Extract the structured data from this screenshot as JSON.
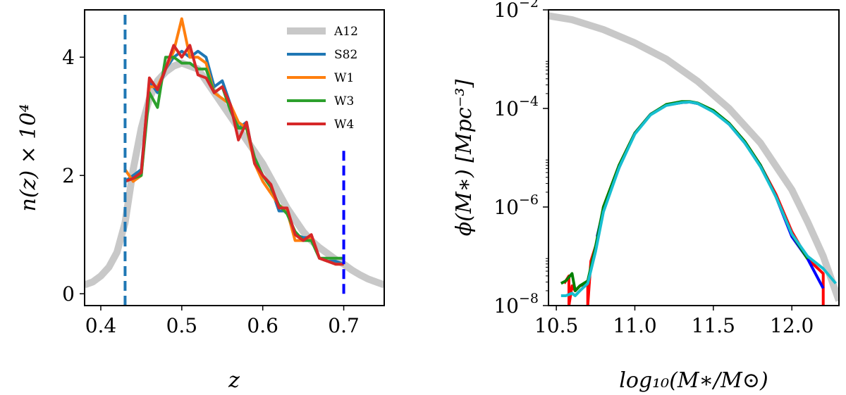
{
  "chart_data": [
    {
      "type": "line",
      "xlabel": "z",
      "ylabel": "n(z) × 10⁴",
      "xlim": [
        0.38,
        0.75
      ],
      "ylim": [
        -0.2,
        4.8
      ],
      "xticks": [
        0.4,
        0.5,
        0.6,
        0.7
      ],
      "xtick_labels": [
        "0.4",
        "0.5",
        "0.6",
        "0.7"
      ],
      "yticks": [
        0,
        2,
        4
      ],
      "ytick_labels": [
        "0",
        "2",
        "4"
      ],
      "legend_position": "top-right",
      "vlines": [
        {
          "x": 0.43,
          "ymin": -0.2,
          "ymax": 4.8,
          "color": "#1f77b4",
          "dashed": true
        },
        {
          "x": 0.7,
          "ymin": 0.0,
          "ymax": 2.5,
          "color": "#0000ff",
          "dashed": true
        }
      ],
      "series": [
        {
          "name": "A12",
          "color": "#c8c8c8",
          "width": 10,
          "x": [
            0.38,
            0.39,
            0.4,
            0.41,
            0.42,
            0.43,
            0.44,
            0.45,
            0.46,
            0.47,
            0.48,
            0.49,
            0.5,
            0.51,
            0.52,
            0.53,
            0.54,
            0.55,
            0.56,
            0.57,
            0.58,
            0.59,
            0.6,
            0.61,
            0.62,
            0.63,
            0.64,
            0.65,
            0.66,
            0.67,
            0.68,
            0.69,
            0.7,
            0.71,
            0.72,
            0.73,
            0.74,
            0.75
          ],
          "y": [
            0.15,
            0.2,
            0.3,
            0.45,
            0.7,
            1.2,
            2.1,
            2.8,
            3.3,
            3.6,
            3.75,
            3.85,
            3.9,
            3.85,
            3.8,
            3.6,
            3.4,
            3.2,
            3.0,
            2.8,
            2.6,
            2.4,
            2.2,
            1.95,
            1.7,
            1.45,
            1.25,
            1.05,
            0.9,
            0.78,
            0.68,
            0.58,
            0.5,
            0.4,
            0.32,
            0.25,
            0.2,
            0.15
          ]
        },
        {
          "name": "S82",
          "color": "#1f77b4",
          "width": 4,
          "x": [
            0.43,
            0.44,
            0.45,
            0.46,
            0.47,
            0.48,
            0.49,
            0.5,
            0.51,
            0.52,
            0.53,
            0.54,
            0.55,
            0.56,
            0.57,
            0.58,
            0.59,
            0.6,
            0.61,
            0.62,
            0.63,
            0.64,
            0.65,
            0.66,
            0.67,
            0.68,
            0.69,
            0.7
          ],
          "y": [
            1.9,
            2.0,
            2.1,
            3.6,
            3.4,
            3.8,
            4.0,
            4.1,
            4.0,
            4.1,
            4.0,
            3.5,
            3.6,
            3.2,
            2.8,
            2.9,
            2.2,
            2.0,
            1.8,
            1.4,
            1.4,
            1.0,
            0.95,
            0.95,
            0.6,
            0.55,
            0.55,
            0.5
          ]
        },
        {
          "name": "W1",
          "color": "#ff7f0e",
          "width": 4,
          "x": [
            0.43,
            0.44,
            0.45,
            0.46,
            0.47,
            0.48,
            0.49,
            0.5,
            0.51,
            0.52,
            0.53,
            0.54,
            0.55,
            0.56,
            0.57,
            0.58,
            0.59,
            0.6,
            0.61,
            0.62,
            0.63,
            0.64,
            0.65,
            0.66,
            0.67,
            0.68,
            0.69,
            0.7
          ],
          "y": [
            2.1,
            1.9,
            2.0,
            3.5,
            3.5,
            3.8,
            4.1,
            4.65,
            4.0,
            4.0,
            3.9,
            3.4,
            3.3,
            3.2,
            2.9,
            2.8,
            2.2,
            1.9,
            1.7,
            1.5,
            1.4,
            0.9,
            0.9,
            0.95,
            0.6,
            0.55,
            0.5,
            0.5
          ]
        },
        {
          "name": "W3",
          "color": "#2ca02c",
          "width": 4,
          "x": [
            0.43,
            0.44,
            0.45,
            0.46,
            0.47,
            0.48,
            0.49,
            0.5,
            0.51,
            0.52,
            0.53,
            0.54,
            0.55,
            0.56,
            0.57,
            0.58,
            0.59,
            0.6,
            0.61,
            0.62,
            0.63,
            0.64,
            0.65,
            0.66,
            0.67,
            0.68,
            0.69,
            0.7
          ],
          "y": [
            1.9,
            1.95,
            2.0,
            3.4,
            3.15,
            4.0,
            4.0,
            3.9,
            3.9,
            3.8,
            3.8,
            3.4,
            3.5,
            3.1,
            2.8,
            2.8,
            2.3,
            2.0,
            1.8,
            1.5,
            1.35,
            1.05,
            0.9,
            0.9,
            0.6,
            0.6,
            0.6,
            0.6
          ]
        },
        {
          "name": "W4",
          "color": "#d62728",
          "width": 4,
          "x": [
            0.43,
            0.44,
            0.45,
            0.46,
            0.47,
            0.48,
            0.49,
            0.5,
            0.51,
            0.52,
            0.53,
            0.54,
            0.55,
            0.56,
            0.57,
            0.58,
            0.59,
            0.6,
            0.61,
            0.62,
            0.63,
            0.64,
            0.65,
            0.66,
            0.67,
            0.68,
            0.69,
            0.7
          ],
          "y": [
            1.9,
            1.95,
            2.05,
            3.65,
            3.45,
            3.8,
            4.2,
            4.0,
            4.2,
            3.7,
            3.65,
            3.4,
            3.5,
            3.2,
            2.6,
            2.9,
            2.2,
            2.0,
            1.85,
            1.45,
            1.45,
            1.0,
            0.9,
            1.0,
            0.6,
            0.55,
            0.5,
            0.5
          ]
        }
      ]
    },
    {
      "type": "line",
      "xlabel": "log₁₀(M∗/M⊙)",
      "ylabel": "ϕ(M∗) [Mpc⁻³]",
      "xlim": [
        10.45,
        12.3
      ],
      "ylim_log10": [
        -8,
        -2
      ],
      "yscale": "log",
      "xticks": [
        10.5,
        11.0,
        11.5,
        12.0
      ],
      "xtick_labels": [
        "10.5",
        "11.0",
        "11.5",
        "12.0"
      ],
      "ytick_exponents": [
        -8,
        -6,
        -4,
        -2
      ],
      "ytick_base": "10",
      "ytick_labels": [
        "−8",
        "−6",
        "−4",
        "−2"
      ],
      "series": [
        {
          "color": "#c8c8c8",
          "width": 10,
          "x": [
            10.45,
            10.6,
            10.8,
            11.0,
            11.2,
            11.4,
            11.6,
            11.8,
            12.0,
            12.1,
            12.2,
            12.3
          ],
          "y_log10": [
            -2.12,
            -2.2,
            -2.4,
            -2.67,
            -3.0,
            -3.45,
            -4.0,
            -4.7,
            -5.65,
            -6.3,
            -7.0,
            -7.9
          ]
        },
        {
          "color": "#ff0000",
          "width": 4,
          "x": [
            10.55,
            10.58,
            10.58,
            10.6,
            10.62,
            10.65,
            10.7,
            10.7,
            10.72,
            10.76,
            10.8,
            10.9,
            11.0,
            11.1,
            11.2,
            11.3,
            11.35,
            11.4,
            11.5,
            11.6,
            11.7,
            11.8,
            11.9,
            12.0,
            12.1,
            12.15,
            12.2,
            12.2,
            12.2
          ],
          "y_log10": [
            -7.55,
            -7.4,
            -8,
            -7.6,
            -7.7,
            -7.6,
            -7.55,
            -8,
            -7.1,
            -6.7,
            -6.0,
            -5.15,
            -4.5,
            -4.12,
            -3.93,
            -3.88,
            -3.87,
            -3.9,
            -4.05,
            -4.3,
            -4.67,
            -5.15,
            -5.75,
            -6.5,
            -7.05,
            -7.2,
            -7.35,
            -7.5,
            -8
          ]
        },
        {
          "color": "#0000ff",
          "width": 4,
          "x": [
            10.76,
            10.8,
            10.9,
            11.0,
            11.1,
            11.2,
            11.3,
            11.35,
            11.4,
            11.5,
            11.6,
            11.7,
            11.8,
            11.9,
            12.0,
            12.1,
            12.2
          ],
          "y_log10": [
            -6.6,
            -6.05,
            -5.2,
            -4.5,
            -4.12,
            -3.93,
            -3.88,
            -3.87,
            -3.9,
            -4.06,
            -4.32,
            -4.7,
            -5.15,
            -5.8,
            -6.6,
            -7.05,
            -7.65
          ]
        },
        {
          "color": "#008000",
          "width": 4,
          "x": [
            10.53,
            10.56,
            10.6,
            10.62,
            10.65,
            10.7,
            10.75,
            10.8,
            10.9,
            11.0,
            11.1,
            11.2,
            11.3,
            11.35,
            11.4,
            11.5,
            11.6,
            11.7,
            11.8,
            11.9,
            12.0,
            12.1
          ],
          "y_log10": [
            -7.55,
            -7.5,
            -7.35,
            -7.7,
            -7.6,
            -7.5,
            -6.8,
            -6.0,
            -5.15,
            -4.5,
            -4.12,
            -3.92,
            -3.86,
            -3.86,
            -3.89,
            -4.04,
            -4.3,
            -4.67,
            -5.15,
            -5.8,
            -6.55,
            -7.05
          ]
        },
        {
          "color": "#17becf",
          "width": 4,
          "x": [
            10.53,
            10.56,
            10.6,
            10.62,
            10.65,
            10.7,
            10.75,
            10.8,
            10.9,
            11.0,
            11.1,
            11.2,
            11.3,
            11.35,
            11.4,
            11.5,
            11.6,
            11.7,
            11.8,
            11.9,
            12.0,
            12.1,
            12.2,
            12.28
          ],
          "y_log10": [
            -7.8,
            -7.8,
            -7.75,
            -7.8,
            -7.7,
            -7.55,
            -6.9,
            -6.1,
            -5.2,
            -4.52,
            -4.13,
            -3.94,
            -3.88,
            -3.87,
            -3.9,
            -4.07,
            -4.32,
            -4.7,
            -5.18,
            -5.8,
            -6.55,
            -7.0,
            -7.25,
            -7.55
          ]
        }
      ]
    }
  ]
}
